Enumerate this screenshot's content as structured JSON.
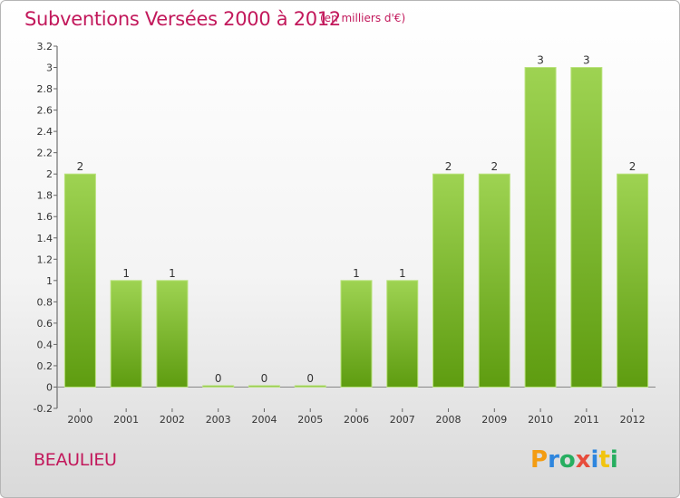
{
  "title": "Subventions Versées 2000 à 2012",
  "unit_note": "(en milliers d'€)",
  "location": "BEAULIEU",
  "brand": "Proxiti",
  "colors": {
    "accent": "#c2185b",
    "bar_top": "#9ed352",
    "bar_bottom": "#5e9c10",
    "axis": "#555555",
    "grid_tick": "#666666"
  },
  "chart_data": {
    "type": "bar",
    "title": "Subventions Versées 2000 à 2012",
    "xlabel": "",
    "ylabel": "",
    "categories": [
      "2000",
      "2001",
      "2002",
      "2003",
      "2004",
      "2005",
      "2006",
      "2007",
      "2008",
      "2009",
      "2010",
      "2011",
      "2012"
    ],
    "values": [
      2,
      1,
      1,
      0,
      0,
      0,
      1,
      1,
      2,
      2,
      3,
      3,
      2
    ],
    "data_labels": [
      "2",
      "1",
      "1",
      "0",
      "0",
      "0",
      "1",
      "1",
      "2",
      "2",
      "3",
      "3",
      "2"
    ],
    "ylim": [
      -0.2,
      3.2
    ],
    "yticks": [
      "-0.2",
      "0",
      "0.2",
      "0.4",
      "0.6",
      "0.8",
      "1",
      "1.2",
      "1.4",
      "1.6",
      "1.8",
      "2",
      "2.2",
      "2.4",
      "2.6",
      "2.8",
      "3",
      "3.2"
    ],
    "grid": false,
    "legend": "none"
  }
}
